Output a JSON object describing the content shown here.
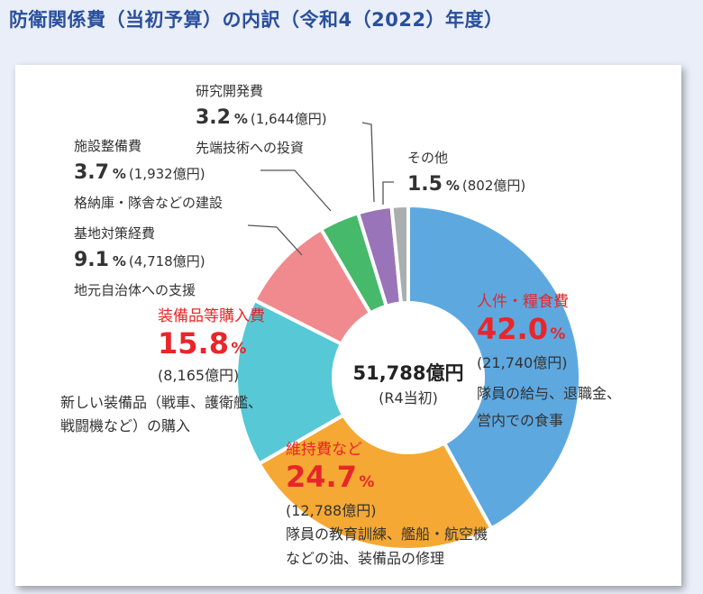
{
  "title": "防衛関係費（当初予算）の内訳（令和4（2022）年度）",
  "chart_data": {
    "type": "pie",
    "style": "donut",
    "center_label": {
      "main": "51,788億円",
      "sub": "(R4当初)"
    },
    "total": 51788,
    "unit": "億円",
    "slices": [
      {
        "name": "人件・糧食費",
        "percent": "42.0",
        "amount": "(21,740億円)",
        "value": 21740,
        "color": "#5ea8e0",
        "highlight": true,
        "desc": [
          "隊員の給与、退職金、",
          "営内での食事"
        ]
      },
      {
        "name": "維持費など",
        "percent": "24.7",
        "amount": "(12,788億円)",
        "value": 12788,
        "color": "#f5a833",
        "highlight": true,
        "desc": [
          "隊員の教育訓練、艦船・航空機",
          "などの油、装備品の修理"
        ]
      },
      {
        "name": "装備品等購入費",
        "percent": "15.8",
        "amount": "(8,165億円)",
        "value": 8165,
        "color": "#56c8d6",
        "highlight": true,
        "desc": [
          "新しい装備品（戦車、護衛艦、",
          "戦闘機など）の購入"
        ]
      },
      {
        "name": "基地対策経費",
        "percent": "9.1",
        "amount": "(4,718億円)",
        "value": 4718,
        "color": "#f08a8e",
        "highlight": false,
        "desc": [
          "地元自治体への支援"
        ]
      },
      {
        "name": "施設整備費",
        "percent": "3.7",
        "amount": "(1,932億円)",
        "value": 1932,
        "color": "#47b96a",
        "highlight": false,
        "desc": [
          "格納庫・隊舎などの建設"
        ]
      },
      {
        "name": "研究開発費",
        "percent": "3.2",
        "amount": "(1,644億円)",
        "value": 1644,
        "color": "#9a74b9",
        "highlight": false,
        "desc": [
          "先端技術への投資"
        ]
      },
      {
        "name": "その他",
        "percent": "1.5",
        "amount": "(802億円)",
        "value": 802,
        "color": "#a9aeae",
        "highlight": false,
        "desc": []
      }
    ],
    "percent_sign": "%",
    "colors": {
      "highlight_text": "#e8262a",
      "normal_text": "#333333"
    }
  }
}
